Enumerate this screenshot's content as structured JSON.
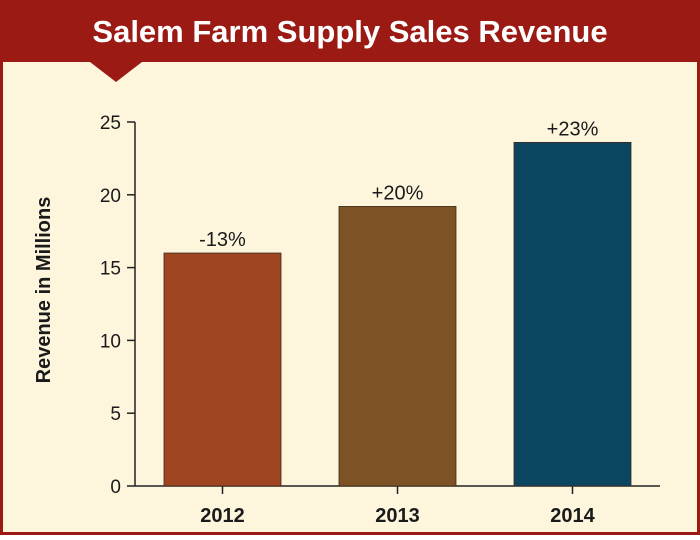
{
  "colors": {
    "background": "#fdf6dd",
    "banner": "#9b1a14",
    "frame": "#9b1a14",
    "axis": "#222222",
    "text": "#1a1a1a",
    "title_text": "#ffffff"
  },
  "chart_data": {
    "type": "bar",
    "title": "Salem Farm Supply Sales Revenue",
    "xlabel": "",
    "ylabel": "Revenue in Millions",
    "categories": [
      "2012",
      "2013",
      "2014"
    ],
    "values": [
      16,
      19.2,
      23.6
    ],
    "data_labels": [
      "-13%",
      "+20%",
      "+23%"
    ],
    "bar_colors": [
      "#a04521",
      "#7d5224",
      "#0c4560"
    ],
    "ylim": [
      0,
      25
    ],
    "yticks": [
      0,
      5,
      10,
      15,
      20,
      25
    ],
    "grid": false,
    "legend": "none"
  }
}
